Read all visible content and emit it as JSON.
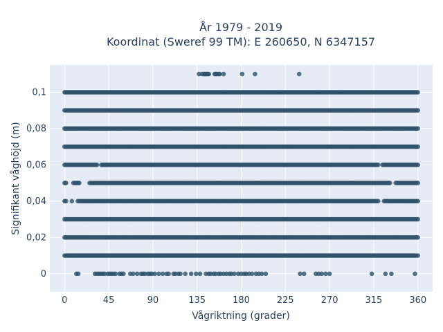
{
  "chart_data": {
    "type": "scatter",
    "title_line1": "År 1979 - 2019",
    "title_line2": "Koordinat (Sweref 99 TM): E 260650, N 6347157",
    "xlabel": "Vågriktning (grader)",
    "ylabel": "Signifikant våghöjd (m)",
    "xlim": [
      -15,
      375
    ],
    "ylim": [
      -0.01,
      0.115
    ],
    "x_ticks": [
      0,
      45,
      90,
      135,
      180,
      225,
      270,
      315,
      360
    ],
    "x_tick_labels": [
      "0",
      "45",
      "90",
      "135",
      "180",
      "225",
      "270",
      "315",
      "360"
    ],
    "y_ticks": [
      0,
      0.02,
      0.04,
      0.06,
      0.08,
      0.1
    ],
    "y_tick_labels": [
      "0",
      "0,02",
      "0,04",
      "0,06",
      "0,08",
      "0,1"
    ],
    "grid": true,
    "marker_color": "#2e5068",
    "plot_background": "#e5ecf6",
    "series": [
      {
        "y": 0.11,
        "x": [
          137,
          140,
          142,
          143,
          144,
          145,
          146,
          147,
          153,
          154,
          155,
          157,
          158,
          162,
          181,
          194,
          239
        ]
      },
      {
        "y": 0.1,
        "range": [
          0,
          360
        ],
        "gaps": []
      },
      {
        "y": 0.09,
        "range": [
          0,
          360
        ],
        "gaps": []
      },
      {
        "y": 0.08,
        "range": [
          0,
          360
        ],
        "gaps": []
      },
      {
        "y": 0.07,
        "range": [
          0,
          360
        ],
        "gaps": []
      },
      {
        "y": 0.06,
        "range": [
          0,
          360
        ],
        "gaps": [
          [
            34,
            37
          ],
          [
            320,
            323
          ]
        ]
      },
      {
        "y": 0.05,
        "range": [
          0,
          360
        ],
        "gaps": [
          [
            3,
            8
          ],
          [
            16,
            24
          ],
          [
            333,
            337
          ]
        ]
      },
      {
        "y": 0.04,
        "range": [
          0,
          360
        ],
        "gaps": [
          [
            2,
            6
          ],
          [
            8,
            12
          ],
          [
            320,
            324
          ]
        ]
      },
      {
        "y": 0.03,
        "range": [
          0,
          360
        ],
        "gaps": []
      },
      {
        "y": 0.02,
        "range": [
          0,
          360
        ],
        "gaps": []
      },
      {
        "y": 0.01,
        "range": [
          0,
          360
        ],
        "gaps": []
      },
      {
        "y": 0.0,
        "x": [
          12,
          14,
          31,
          33,
          35,
          37,
          39,
          41,
          44,
          46,
          48,
          50,
          52,
          56,
          58,
          60,
          67,
          70,
          74,
          78,
          80,
          82,
          85,
          87,
          89,
          92,
          96,
          100,
          104,
          106,
          111,
          113,
          116,
          118,
          123,
          129,
          134,
          138,
          144,
          147,
          149,
          152,
          154,
          157,
          159,
          162,
          165,
          168,
          170,
          173,
          177,
          180,
          183,
          185,
          188,
          191,
          195,
          198,
          201,
          205,
          240,
          244,
          256,
          259,
          262,
          266,
          270,
          313,
          327,
          333,
          357
        ]
      }
    ]
  }
}
